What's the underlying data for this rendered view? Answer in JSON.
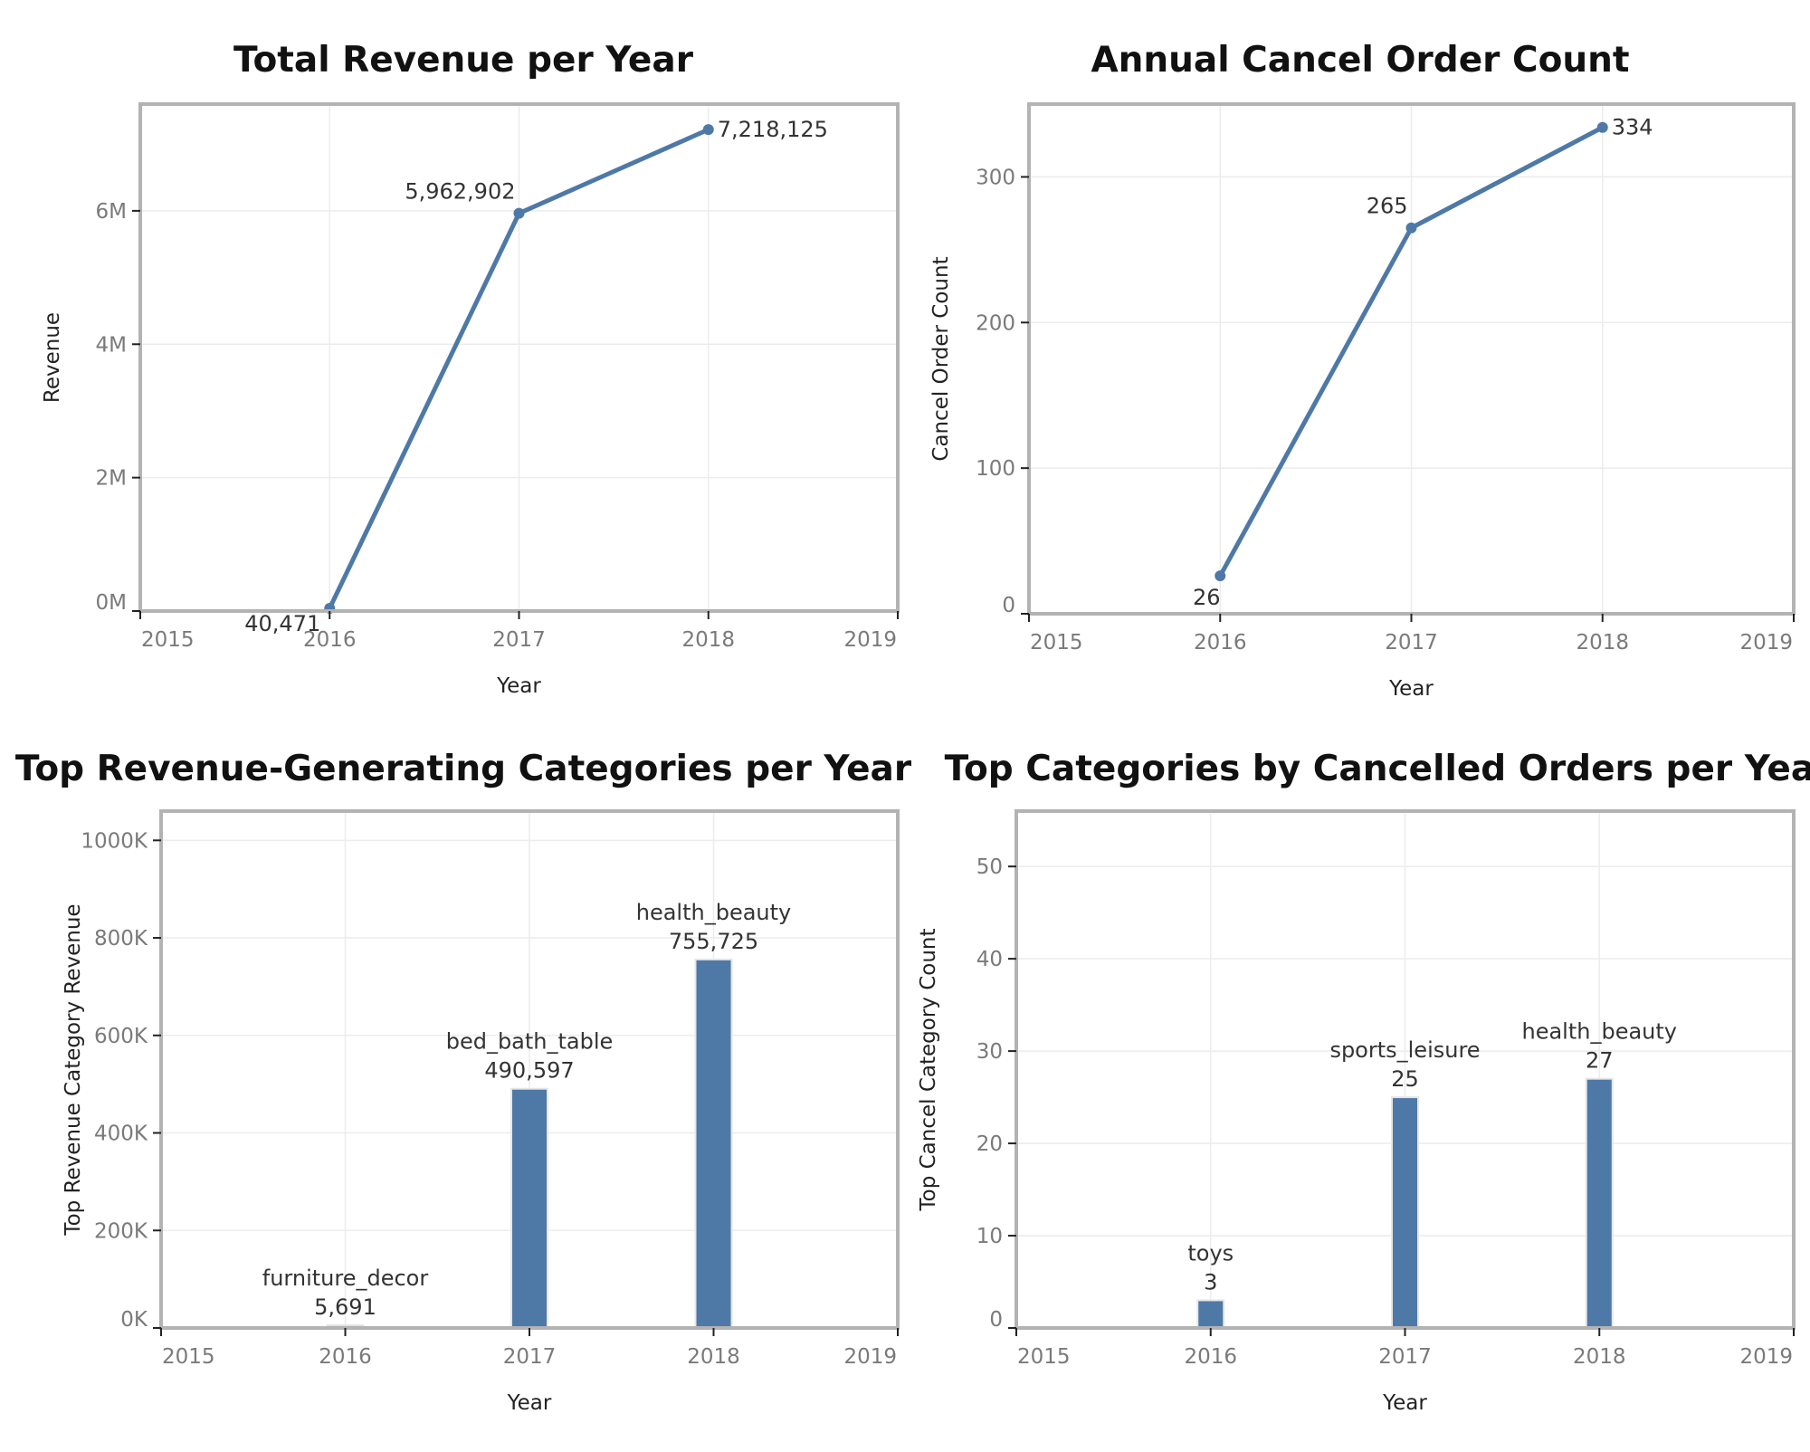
{
  "chart_data": [
    {
      "id": "revenue",
      "type": "line",
      "title": "Total Revenue per Year",
      "xlabel": "Year",
      "ylabel": "Revenue",
      "xlim": [
        2015,
        2019
      ],
      "ylim": [
        0,
        7600000
      ],
      "x_ticks": [
        2015,
        2016,
        2017,
        2018,
        2019
      ],
      "y_ticks": [
        {
          "v": 0,
          "label": "0M"
        },
        {
          "v": 2000000,
          "label": "2M"
        },
        {
          "v": 4000000,
          "label": "4M"
        },
        {
          "v": 6000000,
          "label": "6M"
        }
      ],
      "color": "#4e79a7",
      "points": [
        {
          "x": 2016,
          "y": 40471,
          "label": "40,471"
        },
        {
          "x": 2017,
          "y": 5962902,
          "label": "5,962,902"
        },
        {
          "x": 2018,
          "y": 7218125,
          "label": "7,218,125"
        }
      ]
    },
    {
      "id": "cancel",
      "type": "line",
      "title": "Annual Cancel Order Count",
      "xlabel": "Year",
      "ylabel": "Cancel Order Count",
      "xlim": [
        2015,
        2019
      ],
      "ylim": [
        0,
        350
      ],
      "x_ticks": [
        2015,
        2016,
        2017,
        2018,
        2019
      ],
      "y_ticks": [
        {
          "v": 0,
          "label": "0"
        },
        {
          "v": 100,
          "label": "100"
        },
        {
          "v": 200,
          "label": "200"
        },
        {
          "v": 300,
          "label": "300"
        }
      ],
      "color": "#4e79a7",
      "points": [
        {
          "x": 2016,
          "y": 26,
          "label": "26"
        },
        {
          "x": 2017,
          "y": 265,
          "label": "265"
        },
        {
          "x": 2018,
          "y": 334,
          "label": "334"
        }
      ]
    },
    {
      "id": "topcat-revenue",
      "type": "bar",
      "title": "Top Revenue-Generating Categories per Year",
      "xlabel": "Year",
      "ylabel": "Top Revenue Category Revenue",
      "xlim": [
        2015,
        2019
      ],
      "ylim": [
        0,
        1060000
      ],
      "x_ticks": [
        2015,
        2016,
        2017,
        2018,
        2019
      ],
      "y_ticks": [
        {
          "v": 0,
          "label": "0K"
        },
        {
          "v": 200000,
          "label": "200K"
        },
        {
          "v": 400000,
          "label": "400K"
        },
        {
          "v": 600000,
          "label": "600K"
        },
        {
          "v": 800000,
          "label": "800K"
        },
        {
          "v": 1000000,
          "label": "1000K"
        }
      ],
      "color": "#4e79a7",
      "bars": [
        {
          "x": 2016,
          "value": 5691,
          "category": "furniture_decor",
          "label": "5,691"
        },
        {
          "x": 2017,
          "value": 490597,
          "category": "bed_bath_table",
          "label": "490,597"
        },
        {
          "x": 2018,
          "value": 755725,
          "category": "health_beauty",
          "label": "755,725"
        }
      ]
    },
    {
      "id": "topcat-cancel",
      "type": "bar",
      "title": "Top Categories by Cancelled Orders per Year",
      "xlabel": "Year",
      "ylabel": "Top Cancel Category Count",
      "xlim": [
        2015,
        2019
      ],
      "ylim": [
        0,
        56
      ],
      "x_ticks": [
        2015,
        2016,
        2017,
        2018,
        2019
      ],
      "y_ticks": [
        {
          "v": 0,
          "label": "0"
        },
        {
          "v": 10,
          "label": "10"
        },
        {
          "v": 20,
          "label": "20"
        },
        {
          "v": 30,
          "label": "30"
        },
        {
          "v": 40,
          "label": "40"
        },
        {
          "v": 50,
          "label": "50"
        }
      ],
      "color": "#4e79a7",
      "bars": [
        {
          "x": 2016,
          "value": 3,
          "category": "toys",
          "label": "3"
        },
        {
          "x": 2017,
          "value": 25,
          "category": "sports_leisure",
          "label": "25"
        },
        {
          "x": 2018,
          "value": 27,
          "category": "health_beauty",
          "label": "27"
        }
      ]
    }
  ]
}
